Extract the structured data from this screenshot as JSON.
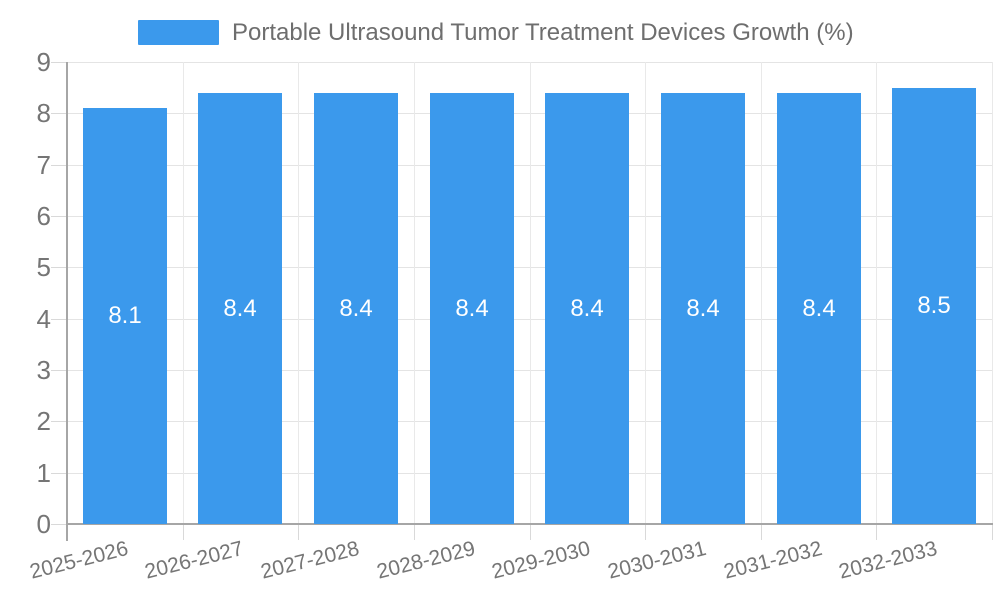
{
  "chart_data": {
    "type": "bar",
    "title": "Portable Ultrasound Tumor Treatment Devices Growth (%)",
    "categories": [
      "2025-2026",
      "2026-2027",
      "2027-2028",
      "2028-2029",
      "2029-2030",
      "2030-2031",
      "2031-2032",
      "2032-2033"
    ],
    "values": [
      8.1,
      8.4,
      8.4,
      8.4,
      8.4,
      8.4,
      8.4,
      8.5
    ],
    "bar_labels": [
      "8.1",
      "8.4",
      "8.4",
      "8.4",
      "8.4",
      "8.4",
      "8.4",
      "8.5"
    ],
    "xlabel": "",
    "ylabel": "",
    "ylim": [
      0,
      9
    ],
    "y_ticks": [
      "0",
      "1",
      "2",
      "3",
      "4",
      "5",
      "6",
      "7",
      "8",
      "9"
    ],
    "grid": true,
    "legend_position": "top-center",
    "colors": {
      "bar": "#3B99EC",
      "bar_label_text": "#FFFFFF",
      "title_text": "#6E6E6E",
      "tick_text": "#757575"
    }
  }
}
